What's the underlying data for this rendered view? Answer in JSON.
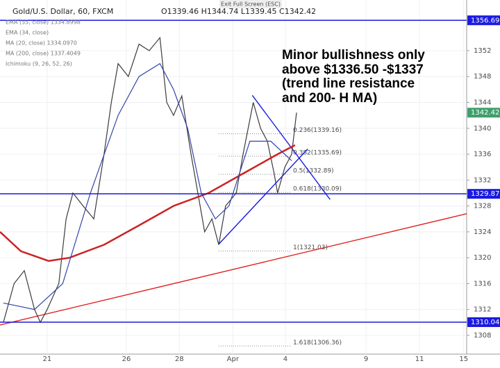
{
  "header": {
    "symbol": "Gold/U.S. Dollar, 60, FXCM",
    "ohlc": "O1339.46 H1344.74 L1339.45 C1342.42",
    "exit": "Exit Full Screen (ESC)",
    "indicators": [
      "EMA (55, close) 1334.8998",
      "EMA (34, close)",
      "MA (20, close) 1334.0970",
      "MA (200, close) 1337.4049",
      "Ichimoku (9, 26, 52, 26)"
    ]
  },
  "chart_data": {
    "type": "line",
    "note": [
      "Minor bullishness only",
      "above $1336.50 -$1337",
      "(trend line resistance",
      "and 200- H MA)"
    ],
    "xlim": [
      0,
      96
    ],
    "ylim": [
      1305.1,
      1359.83
    ],
    "xticks": [
      {
        "value": 9.7,
        "label": "21"
      },
      {
        "value": 26,
        "label": "26"
      },
      {
        "value": 36.9,
        "label": "28"
      },
      {
        "value": 47.9,
        "label": "Apr"
      },
      {
        "value": 58.7,
        "label": "4"
      },
      {
        "value": 75.3,
        "label": "9"
      },
      {
        "value": 86.3,
        "label": "11"
      },
      {
        "value": 95.4,
        "label": "15"
      }
    ],
    "yticks": [
      1308,
      1312,
      1316,
      1320,
      1324,
      1328,
      1332,
      1336,
      1340,
      1344,
      1348,
      1352
    ],
    "last_price": {
      "value": 1342.42,
      "label": "1342.42"
    },
    "series": [
      {
        "color": "#3a3a3a",
        "x": [
          0.7,
          2.9,
          5,
          7.1,
          8.3,
          9.7,
          12.1,
          13.6,
          15,
          17.1,
          19.3,
          21.4,
          22.9,
          24.3,
          26.4,
          28.6,
          30.7,
          32.9,
          34.3,
          35.7,
          37.4,
          39.3,
          40.7,
          42.1,
          43.6,
          45,
          46.4,
          48.6,
          50,
          52.1,
          53.6,
          55,
          56.4,
          57.1,
          58.6,
          60,
          61
        ],
        "values": [
          1310,
          1316,
          1318,
          1312,
          1310,
          1312,
          1316,
          1326,
          1330,
          1328,
          1326,
          1336,
          1344,
          1350,
          1348,
          1353,
          1352,
          1354,
          1344,
          1342,
          1345,
          1336,
          1330,
          1324,
          1326,
          1322,
          1328,
          1330,
          1336,
          1344,
          1340,
          1338,
          1333,
          1330,
          1334,
          1336,
          1342.42
        ]
      },
      {
        "color": "#cc2222",
        "x": [
          0,
          4.3,
          10,
          14.3,
          21.4,
          28.6,
          35.7,
          42.9,
          50,
          57.1,
          60.7
        ],
        "values": [
          1324,
          1321,
          1319.5,
          1320,
          1322,
          1325,
          1328,
          1330,
          1333,
          1336,
          1337.4
        ]
      },
      {
        "color": "#3344aa",
        "x": [
          0.7,
          7.1,
          12.9,
          18.6,
          24.3,
          28.6,
          32.9,
          35.7,
          38.6,
          41.4,
          44.3,
          47.1,
          51.4,
          55.7,
          60
        ],
        "values": [
          1313,
          1312,
          1316,
          1330,
          1342,
          1348,
          1350,
          1346,
          1340,
          1330,
          1326,
          1328,
          1338,
          1338,
          1335
        ]
      }
    ],
    "levels": [
      {
        "value": 1356.69,
        "label": "1356.69"
      },
      {
        "value": 1329.87,
        "label": "1329.87"
      },
      {
        "value": 1310.04,
        "label": "1310.04"
      }
    ],
    "fib": [
      {
        "value": 1339.16,
        "label": "0.236(1339.16)"
      },
      {
        "value": 1335.69,
        "label": "0.382(1335.69)"
      },
      {
        "value": 1332.89,
        "label": "0.5(1332.89)"
      },
      {
        "value": 1330.09,
        "label": "0.618(1330.09)"
      },
      {
        "value": 1321.03,
        "label": "1(1321.03)"
      },
      {
        "value": 1306.36,
        "label": "1.618(1306.36)"
      }
    ],
    "trendlines": [
      {
        "color": "#e02020",
        "x": [
          0,
          96
        ],
        "values": [
          1309.6,
          1326.8
        ]
      },
      {
        "color": "#1a1ae0",
        "x": [
          45,
          63.3
        ],
        "values": [
          1322.1,
          1336.8
        ]
      },
      {
        "color": "#1a1ae0",
        "x": [
          51.9,
          67.9
        ],
        "values": [
          1345.1,
          1329
        ]
      }
    ]
  }
}
